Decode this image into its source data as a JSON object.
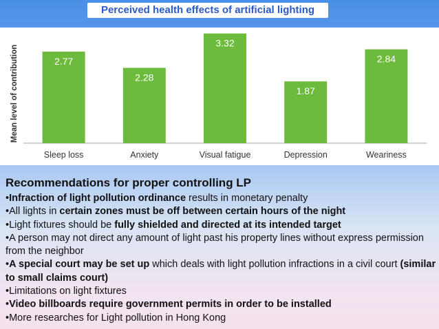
{
  "slide": {
    "title": "Perceived health effects of artificial lighting"
  },
  "chart_data": {
    "type": "bar",
    "title": "",
    "xlabel": "",
    "ylabel": "Mean level of contribution",
    "categories": [
      "Sleep loss",
      "Anxiety",
      "Visual fatigue",
      "Depression",
      "Weariness"
    ],
    "values": [
      2.77,
      2.28,
      3.32,
      1.87,
      2.84
    ],
    "value_labels": [
      "2.77",
      "2.28",
      "3.32",
      "1.87",
      "2.84"
    ],
    "ylim": [
      0,
      3.5
    ],
    "grid": false,
    "bar_color": "#6dbb3c",
    "bar_label_color": "#ffffff"
  },
  "recommendations": {
    "heading": "Recommendations for proper controlling LP",
    "items": [
      {
        "segments": [
          {
            "text": "•",
            "bold": false
          },
          {
            "text": "Infraction of light pollution ordinance",
            "bold": true
          },
          {
            "text": " results in monetary penalty",
            "bold": false
          }
        ]
      },
      {
        "segments": [
          {
            "text": "•All lights in ",
            "bold": false
          },
          {
            "text": "certain zones must be off between certain hours of the night",
            "bold": true
          }
        ]
      },
      {
        "segments": [
          {
            "text": "•Light fixtures should be ",
            "bold": false
          },
          {
            "text": "fully shielded and directed at its intended target",
            "bold": true
          }
        ]
      },
      {
        "segments": [
          {
            "text": "•A person may not direct any amount of light past his property lines without express permission from the neighbor",
            "bold": false
          }
        ]
      },
      {
        "segments": [
          {
            "text": "•",
            "bold": false
          },
          {
            "text": "A special court may be set up",
            "bold": true
          },
          {
            "text": " which deals with light pollution infractions in a civil court ",
            "bold": false
          },
          {
            "text": "(similar to small claims court)",
            "bold": true
          }
        ]
      },
      {
        "segments": [
          {
            "text": "•Limitations on light fixtures",
            "bold": false
          }
        ]
      },
      {
        "segments": [
          {
            "text": "•",
            "bold": false
          },
          {
            "text": "Video billboards require government permits in order to be installed",
            "bold": true
          }
        ]
      },
      {
        "segments": [
          {
            "text": "•More researches for Light pollution in Hong Kong",
            "bold": false
          }
        ]
      }
    ]
  }
}
